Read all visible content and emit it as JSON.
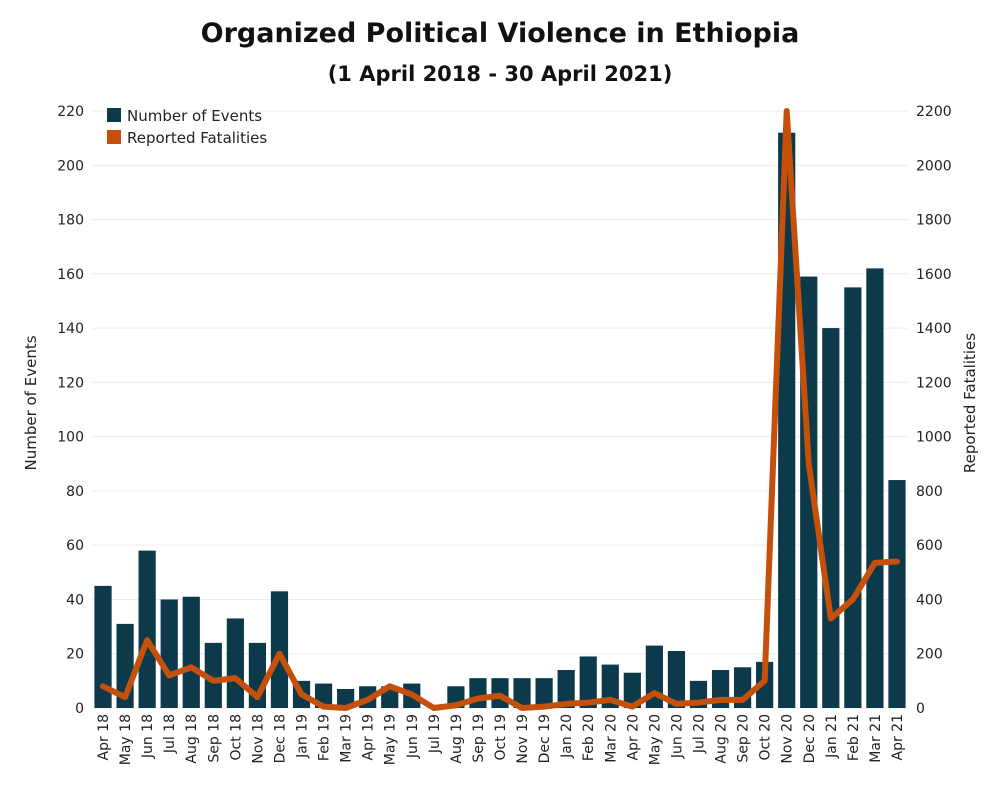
{
  "chart_data": {
    "type": "bar",
    "title": "Organized Political Violence in Ethiopia",
    "subtitle": "(1 April 2018 - 30 April 2021)",
    "categories": [
      "Apr 18",
      "May 18",
      "Jun 18",
      "Jul 18",
      "Aug 18",
      "Sep 18",
      "Oct 18",
      "Nov 18",
      "Dec 18",
      "Jan 19",
      "Feb 19",
      "Mar 19",
      "Apr 19",
      "May 19",
      "Jun 19",
      "Jul 19",
      "Aug 19",
      "Sep 19",
      "Oct 19",
      "Nov 19",
      "Dec 19",
      "Jan 20",
      "Feb 20",
      "Mar 20",
      "Apr 20",
      "May 20",
      "Jun 20",
      "Jul 20",
      "Aug 20",
      "Sep 20",
      "Oct 20",
      "Nov 20",
      "Dec 20",
      "Jan 21",
      "Feb 21",
      "Mar 21",
      "Apr 21"
    ],
    "series": [
      {
        "name": "Number of Events",
        "type": "bar",
        "axis": "left",
        "color": "#0d3a4a",
        "values": [
          45,
          31,
          58,
          40,
          41,
          24,
          33,
          24,
          43,
          10,
          9,
          7,
          8,
          8,
          9,
          0,
          8,
          11,
          11,
          11,
          11,
          14,
          19,
          16,
          13,
          23,
          21,
          10,
          14,
          15,
          17,
          212,
          159,
          140,
          155,
          162,
          84
        ]
      },
      {
        "name": "Reported Fatalities",
        "type": "line",
        "axis": "right",
        "color": "#c4500c",
        "values": [
          80,
          40,
          250,
          120,
          150,
          100,
          110,
          40,
          200,
          50,
          5,
          0,
          30,
          80,
          50,
          0,
          10,
          35,
          45,
          0,
          5,
          15,
          20,
          30,
          5,
          55,
          15,
          20,
          30,
          30,
          100,
          2200,
          900,
          330,
          400,
          535,
          540
        ]
      }
    ],
    "ylabel": "Number of Events",
    "y2label": "Reported Fatalities",
    "ylim": [
      0,
      220
    ],
    "y2lim": [
      0,
      2200
    ],
    "yticks": [
      "0",
      "20",
      "40",
      "60",
      "80",
      "100",
      "120",
      "140",
      "160",
      "180",
      "200",
      "220"
    ],
    "y2ticks": [
      "0",
      "200",
      "400",
      "600",
      "800",
      "1000",
      "1200",
      "1400",
      "1600",
      "1800",
      "2000",
      "2200"
    ],
    "grid": true,
    "legend": "top-left"
  }
}
